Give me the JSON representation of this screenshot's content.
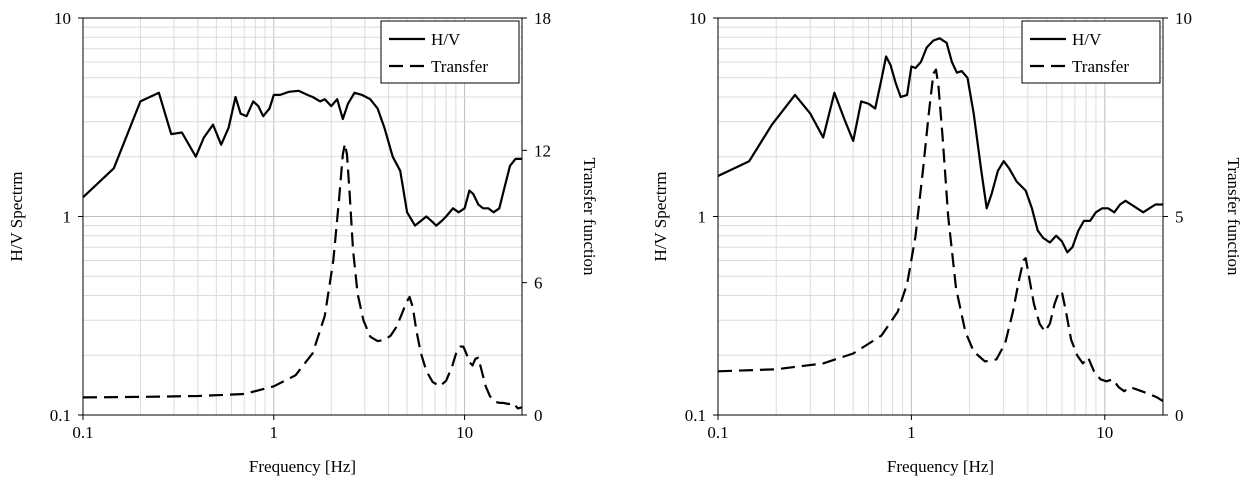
{
  "chart_data": [
    {
      "type": "line",
      "xlabel": "Frequency [Hz]",
      "ylabel": "H/V Spectrm",
      "y2label": "Transfer function",
      "xscale": "log",
      "yscale": "log",
      "xlim": [
        0.1,
        20
      ],
      "ylim": [
        0.1,
        10
      ],
      "y2lim": [
        0,
        18
      ],
      "xticks": [
        "0.1",
        "1",
        "10"
      ],
      "yticks": [
        "0.1",
        "1",
        "10"
      ],
      "y2ticks": [
        "0",
        "6",
        "12",
        "18"
      ],
      "grid": true,
      "legend_position": "top-right",
      "series": [
        {
          "name": "H/V",
          "axis": "left",
          "style": "solid",
          "x": [
            0.1,
            0.145,
            0.2,
            0.25,
            0.29,
            0.33,
            0.39,
            0.43,
            0.48,
            0.53,
            0.58,
            0.63,
            0.67,
            0.72,
            0.78,
            0.83,
            0.88,
            0.95,
            1.0,
            1.08,
            1.2,
            1.35,
            1.5,
            1.6,
            1.75,
            1.85,
            2.0,
            2.15,
            2.3,
            2.45,
            2.65,
            2.9,
            3.2,
            3.5,
            3.8,
            4.2,
            4.6,
            5.0,
            5.5,
            5.9,
            6.3,
            6.7,
            7.1,
            7.6,
            8.0,
            8.7,
            9.3,
            10.0,
            10.6,
            11.1,
            11.8,
            12.5,
            13.3,
            14.2,
            15.2,
            16.2,
            17.3,
            18.5,
            20.0
          ],
          "y": [
            1.25,
            1.75,
            3.8,
            4.2,
            2.6,
            2.65,
            2.0,
            2.5,
            2.9,
            2.3,
            2.8,
            4.0,
            3.3,
            3.2,
            3.8,
            3.6,
            3.2,
            3.5,
            4.1,
            4.1,
            4.25,
            4.3,
            4.1,
            4.0,
            3.8,
            3.9,
            3.6,
            3.9,
            3.1,
            3.7,
            4.2,
            4.1,
            3.9,
            3.5,
            2.8,
            2.0,
            1.7,
            1.05,
            0.9,
            0.95,
            1.0,
            0.95,
            0.9,
            0.95,
            1.0,
            1.1,
            1.05,
            1.1,
            1.35,
            1.3,
            1.15,
            1.1,
            1.1,
            1.05,
            1.1,
            1.4,
            1.8,
            1.95,
            1.95
          ]
        },
        {
          "name": "Transfer",
          "axis": "right",
          "style": "dashed",
          "x": [
            0.1,
            0.2,
            0.4,
            0.7,
            1.0,
            1.3,
            1.6,
            1.85,
            2.05,
            2.2,
            2.3,
            2.36,
            2.42,
            2.5,
            2.6,
            2.75,
            2.95,
            3.2,
            3.5,
            3.8,
            4.1,
            4.4,
            4.7,
            4.95,
            5.15,
            5.35,
            5.6,
            5.9,
            6.3,
            6.8,
            7.4,
            8.0,
            8.6,
            9.1,
            9.5,
            9.85,
            10.2,
            10.6,
            11.0,
            11.4,
            11.8,
            12.3,
            12.9,
            13.6,
            14.5,
            15.3,
            16.0,
            17.0,
            18.0,
            19.0,
            20.0
          ],
          "y": [
            0.8,
            0.82,
            0.86,
            0.95,
            1.3,
            1.8,
            2.8,
            4.5,
            7.0,
            9.8,
            11.8,
            12.3,
            11.8,
            10.0,
            7.5,
            5.5,
            4.3,
            3.55,
            3.35,
            3.4,
            3.6,
            4.0,
            4.6,
            5.1,
            5.35,
            4.9,
            3.8,
            2.8,
            2.0,
            1.5,
            1.3,
            1.55,
            2.2,
            2.9,
            3.1,
            3.1,
            2.8,
            2.4,
            2.25,
            2.55,
            2.6,
            2.0,
            1.3,
            0.85,
            0.6,
            0.55,
            0.55,
            0.5,
            0.55,
            0.3,
            0.35
          ]
        }
      ]
    },
    {
      "type": "line",
      "xlabel": "Frequency [Hz]",
      "ylabel": "H/V Spectrm",
      "y2label": "Transfer function",
      "xscale": "log",
      "yscale": "log",
      "xlim": [
        0.1,
        20
      ],
      "ylim": [
        0.1,
        10
      ],
      "y2lim": [
        0,
        10
      ],
      "xticks": [
        "0.1",
        "1",
        "10"
      ],
      "yticks": [
        "0.1",
        "1",
        "10"
      ],
      "y2ticks": [
        "0",
        "5",
        "10"
      ],
      "grid": true,
      "legend_position": "top-right",
      "series": [
        {
          "name": "H/V",
          "axis": "left",
          "style": "solid",
          "x": [
            0.1,
            0.145,
            0.19,
            0.25,
            0.3,
            0.35,
            0.4,
            0.45,
            0.5,
            0.55,
            0.6,
            0.65,
            0.7,
            0.74,
            0.78,
            0.83,
            0.88,
            0.95,
            1.0,
            1.05,
            1.12,
            1.2,
            1.3,
            1.4,
            1.52,
            1.62,
            1.72,
            1.82,
            1.95,
            2.1,
            2.3,
            2.45,
            2.6,
            2.8,
            3.0,
            3.2,
            3.5,
            3.9,
            4.2,
            4.5,
            4.8,
            5.2,
            5.6,
            6.0,
            6.4,
            6.8,
            7.3,
            7.8,
            8.4,
            9.0,
            9.7,
            10.4,
            11.2,
            12.0,
            12.8,
            13.7,
            14.7,
            15.8,
            17.0,
            18.3,
            20.0
          ],
          "y": [
            1.6,
            1.9,
            2.9,
            4.1,
            3.3,
            2.5,
            4.2,
            3.1,
            2.4,
            3.8,
            3.7,
            3.5,
            4.9,
            6.4,
            5.8,
            4.7,
            4.0,
            4.1,
            5.7,
            5.6,
            6.0,
            7.1,
            7.7,
            7.9,
            7.5,
            6.0,
            5.3,
            5.4,
            5.0,
            3.3,
            1.7,
            1.1,
            1.3,
            1.7,
            1.9,
            1.75,
            1.5,
            1.35,
            1.1,
            0.85,
            0.78,
            0.74,
            0.8,
            0.75,
            0.66,
            0.7,
            0.85,
            0.95,
            0.95,
            1.05,
            1.1,
            1.1,
            1.05,
            1.15,
            1.2,
            1.15,
            1.1,
            1.05,
            1.1,
            1.15,
            1.15
          ]
        },
        {
          "name": "Transfer",
          "axis": "right",
          "style": "dashed",
          "x": [
            0.1,
            0.2,
            0.35,
            0.5,
            0.7,
            0.85,
            0.95,
            1.05,
            1.15,
            1.23,
            1.3,
            1.34,
            1.38,
            1.45,
            1.55,
            1.7,
            1.9,
            2.1,
            2.4,
            2.75,
            3.05,
            3.35,
            3.6,
            3.8,
            3.9,
            4.05,
            4.3,
            4.6,
            4.9,
            5.2,
            5.5,
            5.8,
            6.0,
            6.3,
            6.7,
            7.2,
            7.7,
            8.2,
            8.8,
            9.5,
            10.2,
            11.0,
            11.8,
            12.6,
            13.5,
            14.5,
            15.5,
            16.5,
            17.5,
            18.5,
            20.0
          ],
          "y": [
            1.1,
            1.15,
            1.3,
            1.55,
            2.0,
            2.6,
            3.3,
            4.5,
            6.2,
            7.6,
            8.6,
            8.7,
            8.3,
            7.0,
            5.0,
            3.2,
            2.1,
            1.6,
            1.35,
            1.4,
            1.8,
            2.6,
            3.4,
            3.9,
            3.95,
            3.5,
            2.8,
            2.3,
            2.1,
            2.3,
            2.8,
            3.1,
            3.1,
            2.6,
            1.9,
            1.5,
            1.3,
            1.45,
            1.1,
            0.9,
            0.85,
            0.9,
            0.7,
            0.6,
            0.7,
            0.65,
            0.6,
            0.55,
            0.5,
            0.45,
            0.35
          ]
        }
      ]
    }
  ]
}
